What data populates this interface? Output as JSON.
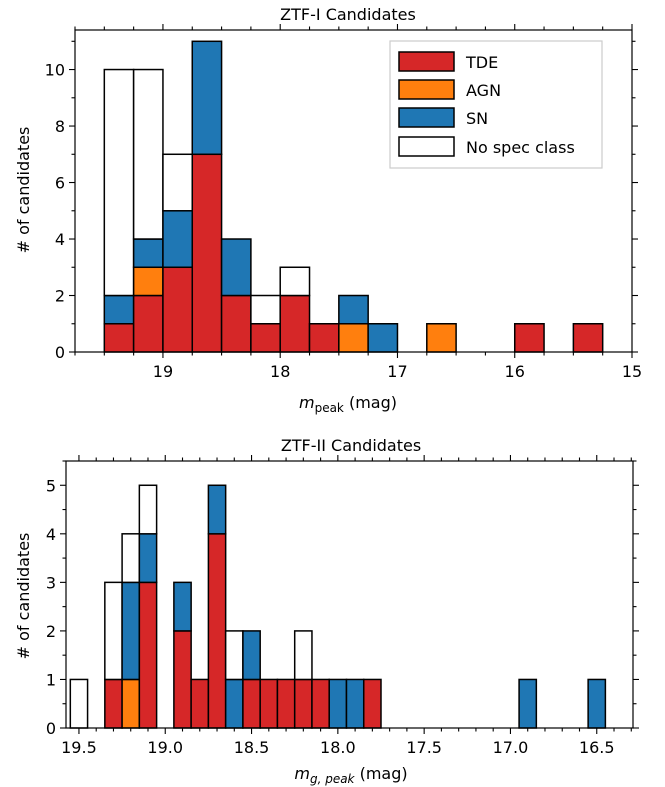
{
  "chart_data": [
    {
      "type": "bar",
      "title": "ZTF-I Candidates",
      "xlabel_main": "m",
      "xlabel_sub": "peak",
      "xlabel_unit": " (mag)",
      "ylabel": "# of candidates",
      "xlim": [
        19.75,
        15.0
      ],
      "ylim": [
        0,
        11.4
      ],
      "xticks": [
        {
          "value": 19,
          "label": "19"
        },
        {
          "value": 18,
          "label": "18"
        },
        {
          "value": 17,
          "label": "17"
        },
        {
          "value": 16,
          "label": "16"
        },
        {
          "value": 15,
          "label": "15"
        }
      ],
      "yticks": [
        {
          "value": 0,
          "label": "0"
        },
        {
          "value": 2,
          "label": "2"
        },
        {
          "value": 4,
          "label": "4"
        },
        {
          "value": 6,
          "label": "6"
        },
        {
          "value": 8,
          "label": "8"
        },
        {
          "value": 10,
          "label": "10"
        }
      ],
      "bin_width": 0.25,
      "bin_starts": [
        19.5,
        19.25,
        19.0,
        18.75,
        18.5,
        18.25,
        18.0,
        17.75,
        17.5,
        17.25,
        17.0,
        16.75,
        16.5,
        16.25,
        16.0,
        15.75,
        15.5,
        15.25
      ],
      "series": [
        {
          "name": "TDE",
          "color": "#d62728",
          "values": [
            1,
            2,
            3,
            7,
            2,
            1,
            2,
            1,
            0,
            0,
            0,
            0,
            0,
            0,
            1,
            0,
            1,
            0
          ]
        },
        {
          "name": "AGN",
          "color": "#ff7f0e",
          "values": [
            0,
            1,
            0,
            0,
            0,
            0,
            0,
            0,
            1,
            0,
            0,
            1,
            0,
            0,
            0,
            0,
            0,
            0
          ]
        },
        {
          "name": "SN",
          "color": "#1f77b4",
          "values": [
            1,
            1,
            2,
            4,
            2,
            0,
            0,
            0,
            1,
            1,
            0,
            0,
            0,
            0,
            0,
            0,
            0,
            0
          ]
        },
        {
          "name": "No spec class",
          "color": "#ffffff",
          "values": [
            8,
            6,
            2,
            0,
            0,
            1,
            1,
            0,
            0,
            0,
            0,
            0,
            0,
            0,
            0,
            0,
            0,
            0
          ]
        }
      ],
      "legend": "top-right"
    },
    {
      "type": "bar",
      "title": "ZTF-II Candidates",
      "xlabel_main": "m",
      "xlabel_sub": "g, peak",
      "xlabel_unit": " (mag)",
      "ylabel": "# of candidates",
      "xlim": [
        19.575,
        16.29
      ],
      "ylim": [
        0,
        5.5
      ],
      "xticks": [
        {
          "value": 19.5,
          "label": "19.5"
        },
        {
          "value": 19.0,
          "label": "19.0"
        },
        {
          "value": 18.5,
          "label": "18.5"
        },
        {
          "value": 18.0,
          "label": "18.0"
        },
        {
          "value": 17.5,
          "label": "17.5"
        },
        {
          "value": 17.0,
          "label": "17.0"
        },
        {
          "value": 16.5,
          "label": "16.5"
        }
      ],
      "yticks": [
        {
          "value": 0,
          "label": "0"
        },
        {
          "value": 1,
          "label": "1"
        },
        {
          "value": 2,
          "label": "2"
        },
        {
          "value": 3,
          "label": "3"
        },
        {
          "value": 4,
          "label": "4"
        },
        {
          "value": 5,
          "label": "5"
        }
      ],
      "bin_width": 0.1,
      "bin_starts": [
        19.55,
        19.45,
        19.35,
        19.25,
        19.15,
        19.05,
        18.95,
        18.85,
        18.75,
        18.65,
        18.55,
        18.45,
        18.35,
        18.25,
        18.15,
        18.05,
        17.95,
        17.85,
        17.75,
        17.65,
        17.55,
        17.45,
        17.35,
        17.25,
        17.15,
        17.05,
        16.95,
        16.85,
        16.75,
        16.65,
        16.55,
        16.45
      ],
      "series": [
        {
          "name": "TDE",
          "color": "#d62728",
          "values": [
            0,
            0,
            1,
            0,
            3,
            0,
            2,
            1,
            4,
            0,
            1,
            1,
            1,
            1,
            1,
            0,
            0,
            1,
            0,
            0,
            0,
            0,
            0,
            0,
            0,
            0,
            0,
            0,
            0,
            0,
            0,
            0
          ]
        },
        {
          "name": "AGN",
          "color": "#ff7f0e",
          "values": [
            0,
            0,
            0,
            1,
            0,
            0,
            0,
            0,
            0,
            0,
            0,
            0,
            0,
            0,
            0,
            0,
            0,
            0,
            0,
            0,
            0,
            0,
            0,
            0,
            0,
            0,
            0,
            0,
            0,
            0,
            0,
            0
          ]
        },
        {
          "name": "SN",
          "color": "#1f77b4",
          "values": [
            0,
            0,
            0,
            2,
            1,
            0,
            1,
            0,
            1,
            1,
            1,
            0,
            0,
            0,
            0,
            1,
            1,
            0,
            0,
            0,
            0,
            0,
            0,
            0,
            0,
            0,
            1,
            0,
            0,
            0,
            1,
            0
          ]
        },
        {
          "name": "No spec class",
          "color": "#ffffff",
          "values": [
            1,
            0,
            2,
            1,
            1,
            0,
            0,
            0,
            0,
            1,
            0,
            0,
            0,
            1,
            0,
            0,
            0,
            0,
            0,
            0,
            0,
            0,
            0,
            0,
            0,
            0,
            0,
            0,
            0,
            0,
            0,
            0
          ]
        }
      ]
    }
  ]
}
